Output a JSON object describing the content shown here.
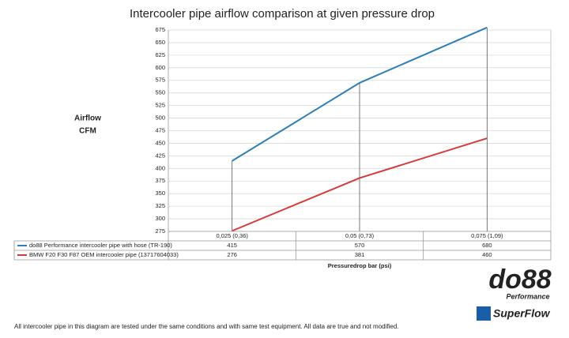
{
  "chart_data": {
    "type": "line",
    "title": "Intercooler pipe airflow comparison at given pressure drop",
    "y_label": [
      "Airflow",
      "CFM"
    ],
    "x_label": "Pressuredrop bar (psi)",
    "categories": [
      "0,025 (0,36)",
      "0,05 (0,73)",
      "0,075 (1,09)"
    ],
    "series": [
      {
        "name": "do88 Performance intercooler pipe with hose (TR-190)",
        "color": "#2f7fb5",
        "values": [
          415,
          570,
          680
        ]
      },
      {
        "name": "BMW F20 F30 F87 OEM intercooler pipe (13717604033)",
        "color": "#d63a3a",
        "values": [
          276,
          381,
          460
        ]
      }
    ],
    "ylim": [
      275,
      675
    ],
    "yticks": [
      275,
      300,
      325,
      350,
      375,
      400,
      425,
      450,
      475,
      500,
      525,
      550,
      575,
      600,
      625,
      650,
      675
    ],
    "grid": true
  },
  "footnote": "All intercooler pipe in this diagram are tested under the same conditions and with same test equipment. All data are true and not modified.",
  "logos": {
    "brand": "do88",
    "brand_sub": "Performance",
    "partner": "SuperFlow"
  }
}
